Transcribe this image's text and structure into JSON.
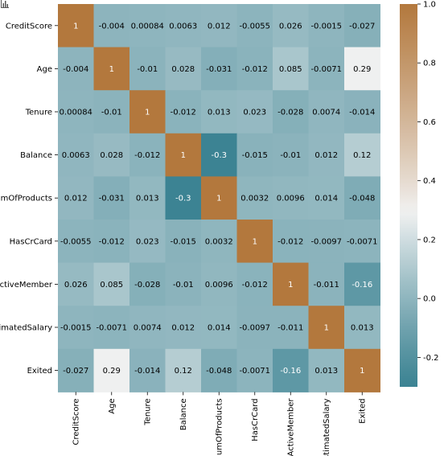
{
  "chart_data": {
    "type": "heatmap",
    "title": "",
    "xlabel": "",
    "ylabel": "",
    "labels": [
      "CreditScore",
      "Age",
      "Tenure",
      "Balance",
      "NumOfProducts",
      "HasCrCard",
      "IsActiveMember",
      "EstimatedSalary",
      "Exited"
    ],
    "matrix": [
      [
        1,
        -0.004,
        0.00084,
        0.0063,
        0.012,
        -0.0055,
        0.026,
        -0.0015,
        -0.027
      ],
      [
        -0.004,
        1,
        -0.01,
        0.028,
        -0.031,
        -0.012,
        0.085,
        -0.0071,
        0.29
      ],
      [
        0.00084,
        -0.01,
        1,
        -0.012,
        0.013,
        0.023,
        -0.028,
        0.0074,
        -0.014
      ],
      [
        0.0063,
        0.028,
        -0.012,
        1,
        -0.3,
        -0.015,
        -0.01,
        0.012,
        0.12
      ],
      [
        0.012,
        -0.031,
        0.013,
        -0.3,
        1,
        0.0032,
        0.0096,
        0.014,
        -0.048
      ],
      [
        -0.0055,
        -0.012,
        0.023,
        -0.015,
        0.0032,
        1,
        -0.012,
        -0.0097,
        -0.0071
      ],
      [
        0.026,
        0.085,
        -0.028,
        -0.01,
        0.0096,
        -0.012,
        1,
        -0.011,
        -0.16
      ],
      [
        -0.0015,
        -0.0071,
        0.0074,
        0.012,
        0.014,
        -0.0097,
        -0.011,
        1,
        0.013
      ],
      [
        -0.027,
        0.29,
        -0.014,
        0.12,
        -0.048,
        -0.0071,
        -0.16,
        0.013,
        1
      ]
    ],
    "annotations": [
      [
        "1",
        "-0.004",
        "0.00084",
        "0.0063",
        "0.012",
        "-0.0055",
        "0.026",
        "-0.0015",
        "-0.027"
      ],
      [
        "-0.004",
        "1",
        "-0.01",
        "0.028",
        "-0.031",
        "-0.012",
        "0.085",
        "-0.0071",
        "0.29"
      ],
      [
        "0.00084",
        "-0.01",
        "1",
        "-0.012",
        "0.013",
        "0.023",
        "-0.028",
        "0.0074",
        "-0.014"
      ],
      [
        "0.0063",
        "0.028",
        "-0.012",
        "1",
        "-0.3",
        "-0.015",
        "-0.01",
        "0.012",
        "0.12"
      ],
      [
        "0.012",
        "-0.031",
        "0.013",
        "-0.3",
        "1",
        "0.0032",
        "0.0096",
        "0.014",
        "-0.048"
      ],
      [
        "-0.0055",
        "-0.012",
        "0.023",
        "-0.015",
        "0.0032",
        "1",
        "-0.012",
        "-0.0097",
        "-0.0071"
      ],
      [
        "0.026",
        "0.085",
        "-0.028",
        "-0.01",
        "0.0096",
        "-0.012",
        "1",
        "-0.011",
        "-0.16"
      ],
      [
        "-0.0015",
        "-0.0071",
        "0.0074",
        "0.012",
        "0.014",
        "-0.0097",
        "-0.011",
        "1",
        "0.013"
      ],
      [
        "-0.027",
        "0.29",
        "-0.014",
        "0.12",
        "-0.048",
        "-0.0071",
        "-0.16",
        "0.013",
        "1"
      ]
    ],
    "colorbar": {
      "vmin": -0.3,
      "vmax": 1.0,
      "ticks": [
        "-0.2",
        "0.0",
        "0.2",
        "0.4",
        "0.6",
        "0.8",
        "1.0"
      ],
      "tick_values": [
        -0.2,
        0.0,
        0.2,
        0.4,
        0.6,
        0.8,
        1.0
      ],
      "colormap": "diverging teal-white-brown",
      "color_low": "#3c8393",
      "color_mid": "#f2f2f2",
      "color_high": "#b3783d",
      "center": 0.3
    },
    "grid": false,
    "legend": "colorbar-right"
  },
  "colors": {
    "text_dark": "#000000",
    "text_light": "#ffffff",
    "background": "#ffffff"
  }
}
